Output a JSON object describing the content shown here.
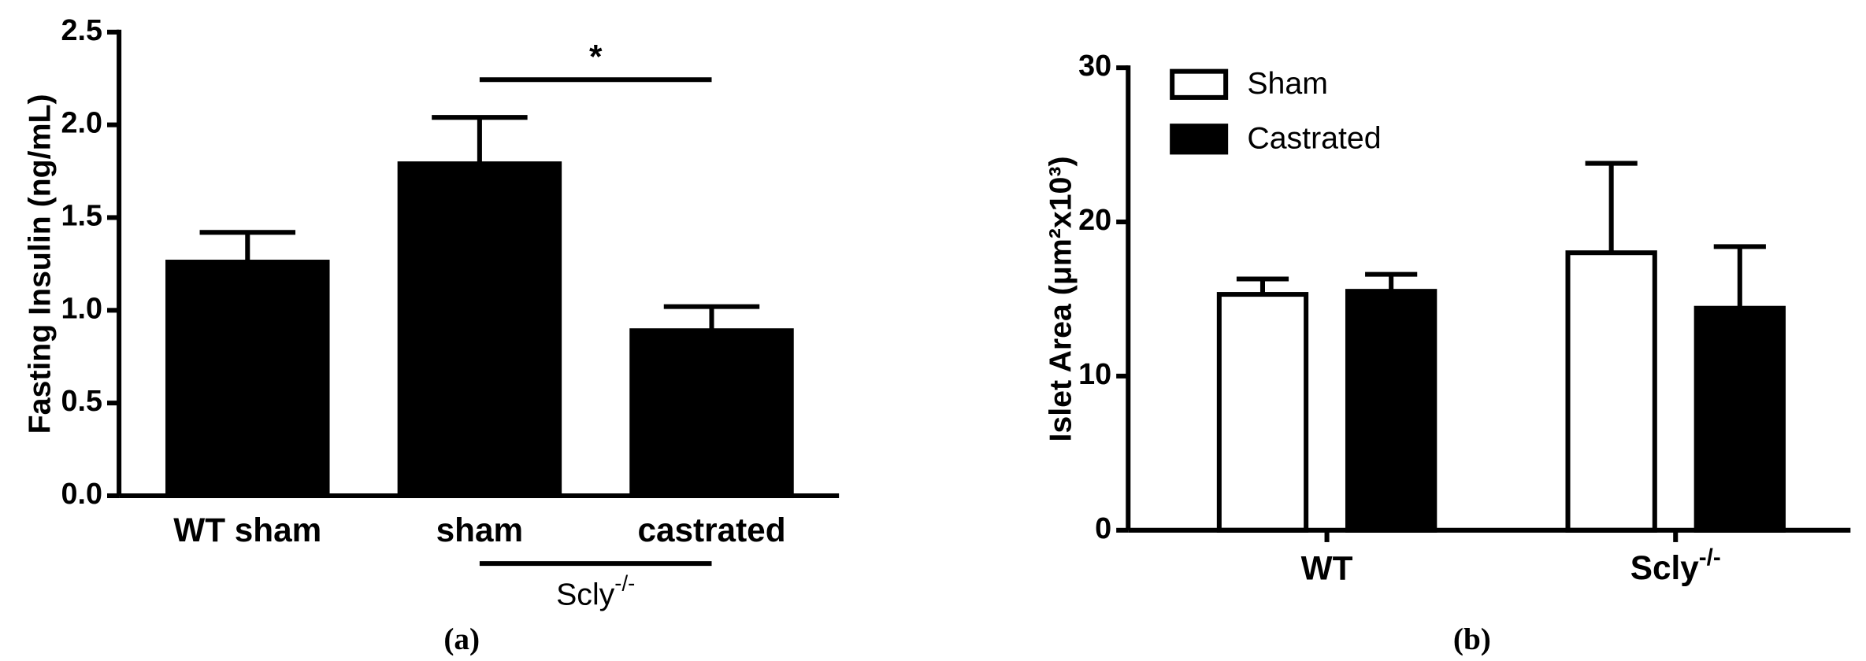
{
  "chart_data": [
    {
      "type": "bar",
      "caption": "(a)",
      "y_label": "Fasting Insulin (ng/mL)",
      "categories": [
        "WT sham",
        "sham",
        "castrated"
      ],
      "values": [
        1.26,
        1.79,
        0.89
      ],
      "errors": [
        0.16,
        0.25,
        0.13
      ],
      "color": "#000000",
      "ylim": [
        0,
        2.5
      ],
      "yticks": [
        {
          "value": 0,
          "label": "0.0"
        },
        0.5,
        {
          "value": 1,
          "label": "1.0"
        },
        1.5,
        {
          "value": 2,
          "label": "2.0"
        },
        2.5
      ],
      "annotation": "*",
      "group_label": "Scly-/-"
    },
    {
      "type": "grouped_bar",
      "caption": "(b)",
      "y_label": "Islet Area (μm²x10³)",
      "categories": [
        "WT",
        "Scly-/-"
      ],
      "series": [
        {
          "name": "Sham",
          "color": "#ffffff",
          "values": [
            15.3,
            18.0
          ],
          "errors": [
            1.0,
            5.8
          ]
        },
        {
          "name": "Castrated",
          "color": "#000000",
          "values": [
            15.5,
            14.4
          ],
          "errors": [
            1.1,
            4.0
          ]
        }
      ],
      "ylim": [
        0,
        30
      ],
      "yticks": [
        0,
        10,
        20,
        30
      ],
      "legend": "top-left"
    }
  ]
}
